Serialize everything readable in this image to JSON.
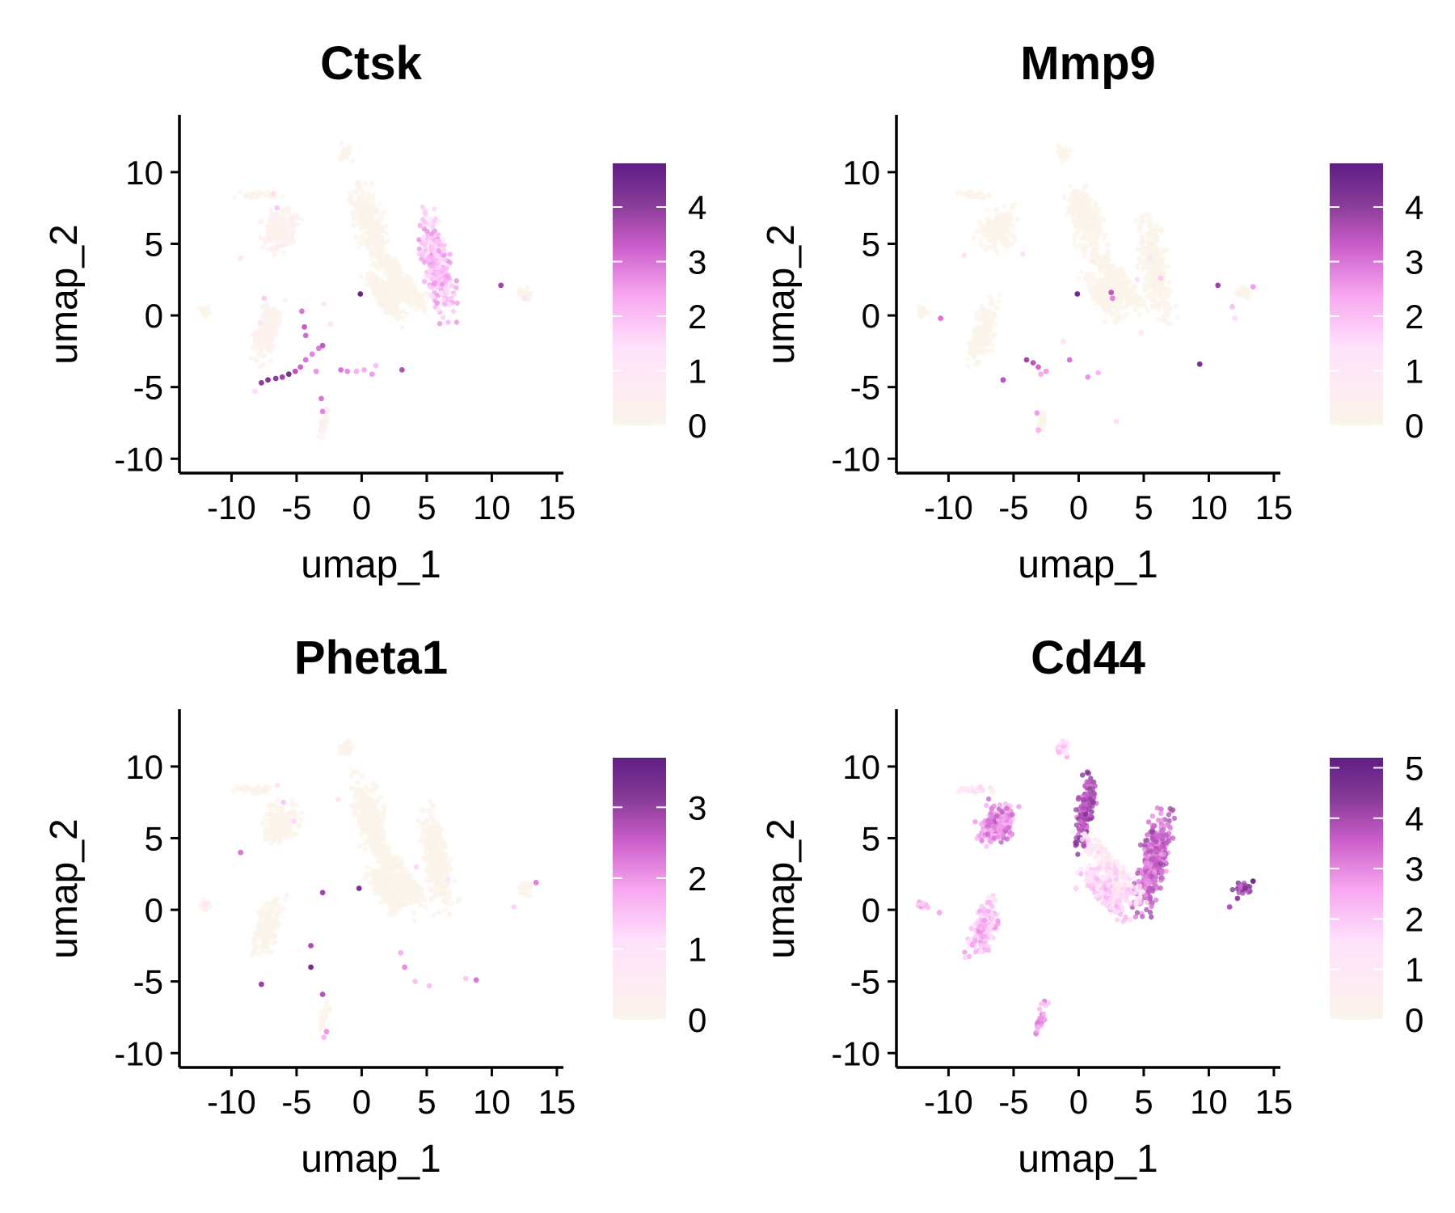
{
  "palette": {
    "low": "#fbf4ea",
    "mid_light": "#ffe1fb",
    "mid": "#f7a6ef",
    "mid_dark": "#cc5fcc",
    "dark": "#8a3c98",
    "darkest": "#5e1e86",
    "axis": "#000000",
    "background": "#ffffff"
  },
  "chart_data": [
    {
      "type": "scatter",
      "title": "Ctsk",
      "xlabel": "umap_1",
      "ylabel": "umap_2",
      "xlim": [
        -14,
        15.5
      ],
      "ylim": [
        -11,
        14
      ],
      "xticks": [
        -10,
        -5,
        0,
        5,
        10,
        15
      ],
      "yticks": [
        -10,
        -5,
        0,
        5,
        10
      ],
      "color_scale": {
        "min": 0,
        "max": 4.8,
        "ticks": [
          0,
          1,
          2,
          3,
          4
        ]
      },
      "points": [
        [
          -0.1,
          1.5,
          4.6
        ],
        [
          10.7,
          2.1,
          3.8
        ],
        [
          -7.7,
          -4.7,
          4.0
        ],
        [
          -7.2,
          -4.5,
          4.2
        ],
        [
          -6.6,
          -4.4,
          4.0
        ],
        [
          -6.1,
          -4.3,
          3.8
        ],
        [
          -5.6,
          -4.1,
          4.3
        ],
        [
          -5.1,
          -3.9,
          3.5
        ],
        [
          -4.7,
          -3.6,
          3.2
        ],
        [
          -4.3,
          -3.1,
          3.0
        ],
        [
          -3.8,
          -2.7,
          2.8
        ],
        [
          -3.3,
          -2.3,
          2.9
        ],
        [
          -3.0,
          -2.1,
          3.4
        ],
        [
          -4.6,
          0.3,
          3.0
        ],
        [
          -4.4,
          -0.8,
          3.3
        ],
        [
          -4.3,
          -1.4,
          3.1
        ],
        [
          -3.5,
          -3.9,
          2.6
        ],
        [
          -3.1,
          -5.8,
          3.0
        ],
        [
          -3.0,
          -6.7,
          2.8
        ],
        [
          -1.6,
          -3.8,
          3.0
        ],
        [
          -1.1,
          -3.9,
          2.7
        ],
        [
          -0.4,
          -3.9,
          2.2
        ],
        [
          0.2,
          -3.8,
          2.3
        ],
        [
          0.8,
          -4.1,
          2.5
        ],
        [
          1.1,
          -3.5,
          2.0
        ],
        [
          3.1,
          -3.8,
          3.6
        ],
        [
          -7.5,
          1.2,
          1.8
        ],
        [
          -8.2,
          -5.3,
          1.5
        ],
        [
          -9.3,
          4.0,
          1.2
        ],
        [
          -6.8,
          8.5,
          1.5
        ],
        [
          -6.5,
          7.5,
          1.8
        ],
        [
          -7.8,
          -0.5,
          1.2
        ],
        [
          -2.9,
          0.8,
          1.0
        ],
        [
          -2.4,
          -0.6,
          1.1
        ],
        [
          12.5,
          1.2,
          1.2
        ]
      ],
      "regions": [
        [
          -0.5,
          0.5,
          6.8,
          0.05,
          1.5,
          3.0
        ],
        [
          -0.4,
          5.8,
          3.4,
          2.0,
          1.3,
          4.4
        ],
        [
          -1.6,
          2.7,
          2.8,
          0.02,
          1.2,
          3.0
        ],
        [
          -2.3,
          2.6,
          1.6,
          0.02,
          1.5,
          1.4
        ],
        [
          -1.2,
          1.9,
          1.2,
          0.02,
          1.2,
          2.1
        ],
        [
          0.5,
          -7.3,
          -1.2,
          0.2,
          1.2,
          2.6
        ],
        [
          0.3,
          -6.2,
          6.0,
          0.3,
          1.8,
          1.8
        ],
        [
          0.4,
          -2.9,
          -7.5,
          0.3,
          0.4,
          1.4
        ],
        [
          0,
          -12.0,
          0.3,
          0.02,
          0.5,
          0.4
        ],
        [
          0,
          12.6,
          1.5,
          0.02,
          0.8,
          0.6
        ],
        [
          0,
          -1.2,
          11.3,
          0.05,
          0.6,
          0.8
        ],
        [
          0,
          -8.0,
          8.4,
          0.02,
          2.0,
          0.3
        ]
      ]
    },
    {
      "type": "scatter",
      "title": "Mmp9",
      "xlabel": "umap_1",
      "ylabel": "umap_2",
      "xlim": [
        -14,
        15.5
      ],
      "ylim": [
        -11,
        14
      ],
      "xticks": [
        -10,
        -5,
        0,
        5,
        10,
        15
      ],
      "yticks": [
        -10,
        -5,
        0,
        5,
        10
      ],
      "color_scale": {
        "min": 0,
        "max": 4.8,
        "ticks": [
          0,
          1,
          2,
          3,
          4
        ]
      },
      "points": [
        [
          -0.1,
          1.5,
          4.5
        ],
        [
          10.7,
          2.1,
          3.9
        ],
        [
          9.3,
          -3.4,
          4.3
        ],
        [
          -4.0,
          -3.1,
          3.8
        ],
        [
          -3.5,
          -3.3,
          3.5
        ],
        [
          -3.1,
          -3.6,
          3.2
        ],
        [
          -2.5,
          -3.9,
          2.5
        ],
        [
          -0.7,
          -3.1,
          3.0
        ],
        [
          2.5,
          1.6,
          3.4
        ],
        [
          2.6,
          1.2,
          2.8
        ],
        [
          -5.8,
          -4.5,
          3.5
        ],
        [
          -10.6,
          -0.2,
          3.0
        ],
        [
          -3.2,
          -6.8,
          2.5
        ],
        [
          -3.1,
          -8.0,
          2.2
        ],
        [
          -2.9,
          -4.1,
          2.3
        ],
        [
          0.7,
          -4.3,
          2.6
        ],
        [
          1.5,
          -4.0,
          2.1
        ],
        [
          4.5,
          2.5,
          1.5
        ],
        [
          5.5,
          4.0,
          1.2
        ],
        [
          6.3,
          2.6,
          1.8
        ],
        [
          13.4,
          2.0,
          2.5
        ],
        [
          11.8,
          0.6,
          2.0
        ],
        [
          12.0,
          -0.2,
          1.5
        ],
        [
          -8.8,
          4.2,
          1.2
        ],
        [
          -4.3,
          4.3,
          1.4
        ],
        [
          2.9,
          -7.4,
          1.5
        ],
        [
          4.8,
          -1.2,
          1.0
        ],
        [
          -1.2,
          -1.8,
          1.3
        ]
      ],
      "regions": [
        [
          -0.4,
          0.5,
          6.8,
          0.01,
          1.5,
          3.0
        ],
        [
          -0.3,
          5.8,
          3.4,
          0.02,
          1.3,
          4.4
        ],
        [
          -1.6,
          2.7,
          2.8,
          0.01,
          1.2,
          3.0
        ],
        [
          -2.3,
          2.6,
          1.6,
          0.01,
          1.5,
          1.4
        ],
        [
          -1.2,
          1.9,
          1.2,
          0.01,
          1.2,
          2.1
        ],
        [
          0.5,
          -7.3,
          -1.2,
          0.01,
          1.2,
          2.6
        ],
        [
          0.3,
          -6.2,
          6.0,
          0.01,
          1.8,
          1.8
        ],
        [
          0.4,
          -2.9,
          -7.5,
          0.01,
          0.4,
          1.4
        ],
        [
          0,
          -12.0,
          0.3,
          0.02,
          0.5,
          0.4
        ],
        [
          0,
          12.6,
          1.5,
          0.02,
          0.8,
          0.6
        ],
        [
          0,
          -1.2,
          11.3,
          0.01,
          0.6,
          0.8
        ],
        [
          0,
          -8.0,
          8.4,
          0.01,
          2.0,
          0.3
        ]
      ]
    },
    {
      "type": "scatter",
      "title": "Pheta1",
      "xlabel": "umap_1",
      "ylabel": "umap_2",
      "xlim": [
        -14,
        15.5
      ],
      "ylim": [
        -11,
        14
      ],
      "xticks": [
        -10,
        -5,
        0,
        5,
        10,
        15
      ],
      "yticks": [
        -10,
        -5,
        0,
        5,
        10
      ],
      "color_scale": {
        "min": 0,
        "max": 3.7,
        "ticks": [
          0,
          1,
          2,
          3
        ]
      },
      "points": [
        [
          -0.2,
          1.5,
          3.3
        ],
        [
          -3.9,
          -4.0,
          3.4
        ],
        [
          -7.7,
          -5.2,
          3.0
        ],
        [
          -3.0,
          1.2,
          2.9
        ],
        [
          -3.0,
          -5.9,
          2.7
        ],
        [
          -3.9,
          -2.5,
          2.8
        ],
        [
          -9.3,
          4.0,
          2.3
        ],
        [
          -2.7,
          -8.5,
          2.0
        ],
        [
          -2.9,
          -8.9,
          1.6
        ],
        [
          13.4,
          1.9,
          2.2
        ],
        [
          8.8,
          -4.9,
          2.3
        ],
        [
          3.3,
          -4.0,
          2.1
        ],
        [
          3.0,
          -3.0,
          1.7
        ],
        [
          4.1,
          -5.0,
          1.5
        ],
        [
          5.2,
          -5.3,
          1.5
        ],
        [
          8.0,
          -4.8,
          1.4
        ],
        [
          -6.0,
          7.5,
          1.4
        ],
        [
          -5.2,
          6.2,
          1.2
        ],
        [
          11.7,
          0.2,
          1.3
        ],
        [
          -12.0,
          0.4,
          1.0
        ],
        [
          -6.5,
          8.7,
          1.0
        ],
        [
          4.2,
          3.0,
          1.2
        ],
        [
          6.6,
          2.1,
          1.0
        ],
        [
          -1.8,
          7.7,
          1.0
        ]
      ],
      "regions": [
        [
          -0.4,
          0.5,
          6.8,
          0.01,
          1.5,
          3.0
        ],
        [
          -0.3,
          5.8,
          3.4,
          0.03,
          1.3,
          4.4
        ],
        [
          -1.6,
          2.7,
          2.8,
          0.02,
          1.2,
          3.0
        ],
        [
          -2.3,
          2.6,
          1.6,
          0.01,
          1.5,
          1.4
        ],
        [
          -1.2,
          1.9,
          1.2,
          0.01,
          1.2,
          2.1
        ],
        [
          0.5,
          -7.3,
          -1.2,
          0.01,
          1.2,
          2.6
        ],
        [
          0.3,
          -6.2,
          6.0,
          0.04,
          1.8,
          1.8
        ],
        [
          0.4,
          -2.9,
          -7.5,
          0.02,
          0.4,
          1.4
        ],
        [
          0,
          -12.0,
          0.3,
          0.02,
          0.5,
          0.4
        ],
        [
          0,
          12.6,
          1.5,
          0.02,
          0.8,
          0.6
        ],
        [
          0,
          -1.2,
          11.3,
          0.01,
          0.6,
          0.8
        ],
        [
          0,
          -8.0,
          8.4,
          0.02,
          2.0,
          0.3
        ]
      ]
    },
    {
      "type": "scatter",
      "title": "Cd44",
      "xlabel": "umap_1",
      "ylabel": "umap_2",
      "xlim": [
        -14,
        15.5
      ],
      "ylim": [
        -11,
        14
      ],
      "xticks": [
        -10,
        -5,
        0,
        5,
        10,
        15
      ],
      "yticks": [
        -10,
        -5,
        0,
        5,
        10
      ],
      "color_scale": {
        "min": 0,
        "max": 5.2,
        "ticks": [
          0,
          1,
          2,
          3,
          4,
          5
        ]
      },
      "points": [
        [
          -0.2,
          1.5,
          1.8
        ],
        [
          13.4,
          2.0,
          4.8
        ],
        [
          12.8,
          1.5,
          4.6
        ],
        [
          12.2,
          0.8,
          4.2
        ],
        [
          11.6,
          0.2,
          3.8
        ],
        [
          -10.7,
          -0.2,
          2.5
        ],
        [
          -12.0,
          0.4,
          2.0
        ]
      ],
      "regions": [
        [
          0.3,
          0.5,
          6.8,
          4.0,
          0.8,
          3.3
        ],
        [
          0.4,
          5.8,
          3.4,
          3.5,
          1.3,
          4.4
        ],
        [
          -1.6,
          2.7,
          2.8,
          1.0,
          1.2,
          3.0
        ],
        [
          -2.3,
          2.6,
          1.6,
          1.5,
          1.5,
          1.4
        ],
        [
          -1.2,
          1.9,
          1.2,
          1.8,
          1.2,
          2.1
        ],
        [
          0.5,
          -7.3,
          -1.2,
          2.2,
          1.2,
          2.6
        ],
        [
          0.3,
          -6.2,
          6.0,
          3.0,
          1.8,
          1.8
        ],
        [
          0.4,
          -2.9,
          -7.5,
          2.8,
          0.4,
          1.4
        ],
        [
          0,
          -12.0,
          0.3,
          2.0,
          0.5,
          0.4
        ],
        [
          0,
          12.6,
          1.5,
          4.2,
          0.8,
          0.6
        ],
        [
          0,
          -1.2,
          11.3,
          2.0,
          0.6,
          0.8
        ],
        [
          0,
          -8.0,
          8.4,
          1.2,
          2.0,
          0.3
        ]
      ]
    }
  ]
}
